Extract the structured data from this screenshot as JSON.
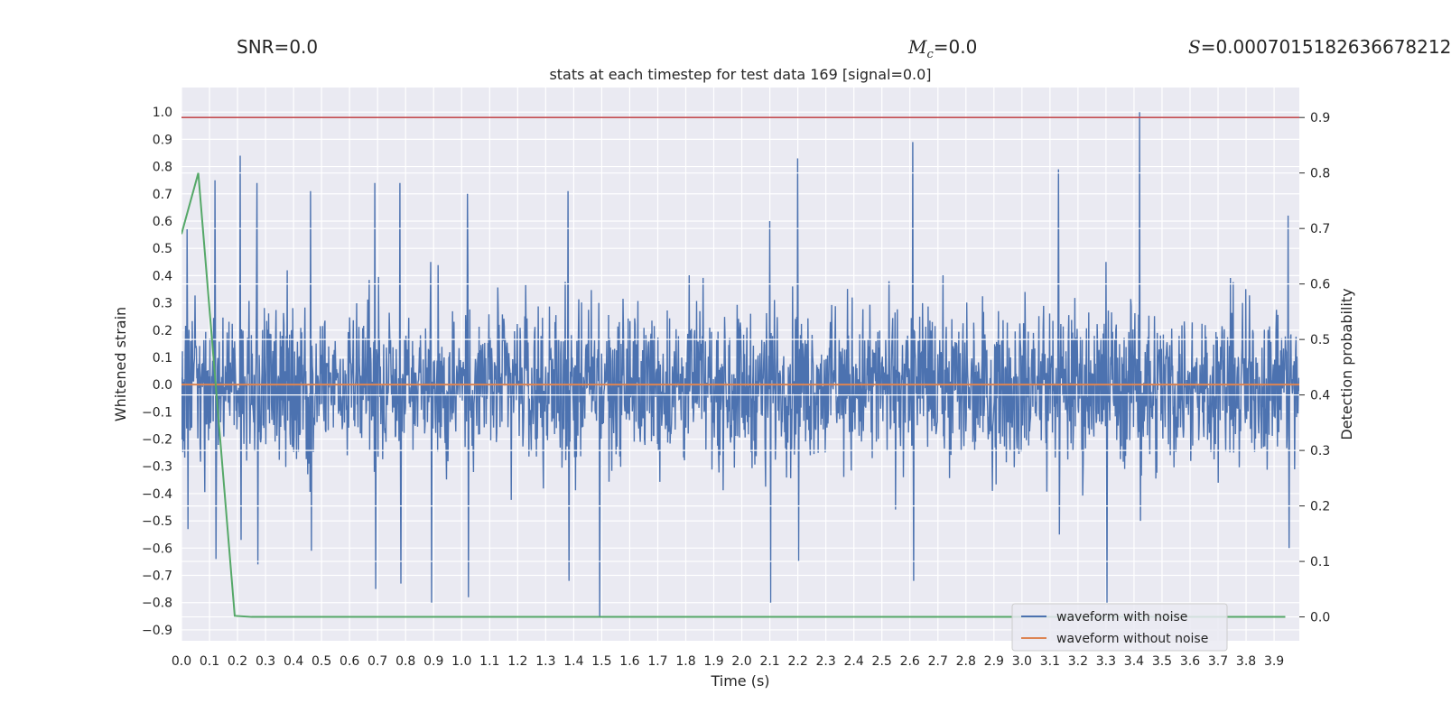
{
  "header": {
    "snr_label": "SNR=",
    "snr_value": "0.0",
    "mc_symbol": "M",
    "mc_sub": "c",
    "mc_value": "=0.0",
    "s_symbol": "S",
    "s_value": "=0.0007015182636678212"
  },
  "chart_data": {
    "type": "line",
    "title": "stats at each timestep for test data 169 [signal=0.0]",
    "xlabel": "Time (s)",
    "ylabel": "Whitened strain",
    "y2label": "Detection probability",
    "xlim": [
      0.0,
      3.99
    ],
    "ylim": [
      -0.94,
      1.09
    ],
    "y2lim": [
      -0.043,
      0.954
    ],
    "x_ticks": [
      "0.0",
      "0.1",
      "0.2",
      "0.3",
      "0.4",
      "0.5",
      "0.6",
      "0.7",
      "0.8",
      "0.9",
      "1.0",
      "1.1",
      "1.2",
      "1.3",
      "1.4",
      "1.5",
      "1.6",
      "1.7",
      "1.8",
      "1.9",
      "2.0",
      "2.1",
      "2.2",
      "2.3",
      "2.4",
      "2.5",
      "2.6",
      "2.7",
      "2.8",
      "2.9",
      "3.0",
      "3.1",
      "3.2",
      "3.3",
      "3.4",
      "3.5",
      "3.6",
      "3.7",
      "3.8",
      "3.9"
    ],
    "y_ticks": [
      "1.0",
      "0.9",
      "0.8",
      "0.7",
      "0.6",
      "0.5",
      "0.4",
      "0.3",
      "0.2",
      "0.1",
      "0.0",
      "−0.1",
      "−0.2",
      "−0.3",
      "−0.4",
      "−0.5",
      "−0.6",
      "−0.7",
      "−0.8",
      "−0.9"
    ],
    "y2_ticks": [
      "0.9",
      "0.8",
      "0.7",
      "0.6",
      "0.5",
      "0.4",
      "0.3",
      "0.2",
      "0.1",
      "0.0"
    ],
    "grid": true,
    "legend_position": "lower-right",
    "threshold": {
      "value": 0.9,
      "axis": "y2",
      "color": "#c44e52"
    },
    "series": [
      {
        "name": "waveform with noise",
        "color": "#4c72b0",
        "axis": "y",
        "note_samples": "dense noise trace; envelope peaks listed",
        "peaks": [
          [
            0.02,
            0.57,
            -0.53
          ],
          [
            0.12,
            0.75,
            -0.64
          ],
          [
            0.21,
            0.84,
            -0.57
          ],
          [
            0.27,
            0.74,
            -0.66
          ],
          [
            0.46,
            0.71,
            -0.61
          ],
          [
            0.69,
            0.74,
            -0.75
          ],
          [
            0.78,
            0.74,
            -0.73
          ],
          [
            0.89,
            0.45,
            -0.8
          ],
          [
            1.02,
            0.7,
            -0.78
          ],
          [
            1.38,
            0.71,
            -0.72
          ],
          [
            1.49,
            0.3,
            -0.85
          ],
          [
            2.1,
            0.6,
            -0.8
          ],
          [
            2.2,
            0.83,
            -0.65
          ],
          [
            2.61,
            0.89,
            -0.72
          ],
          [
            3.13,
            0.79,
            -0.55
          ],
          [
            3.3,
            0.45,
            -0.8
          ],
          [
            3.42,
            1.0,
            -0.5
          ],
          [
            3.95,
            0.62,
            -0.6
          ]
        ],
        "amplitude": 0.42
      },
      {
        "name": "waveform without noise",
        "color": "#dd8452",
        "axis": "y",
        "x": [
          0.0,
          3.99
        ],
        "y": [
          0.0,
          0.0
        ]
      },
      {
        "name": "",
        "color": "#55a868",
        "axis": "y2",
        "x": [
          0.0,
          0.06,
          0.19,
          0.25,
          1.4,
          2.7,
          3.0,
          3.94
        ],
        "y": [
          0.69,
          0.8,
          0.002,
          0.0,
          0.0,
          0.0,
          0.0,
          0.0
        ]
      }
    ]
  }
}
